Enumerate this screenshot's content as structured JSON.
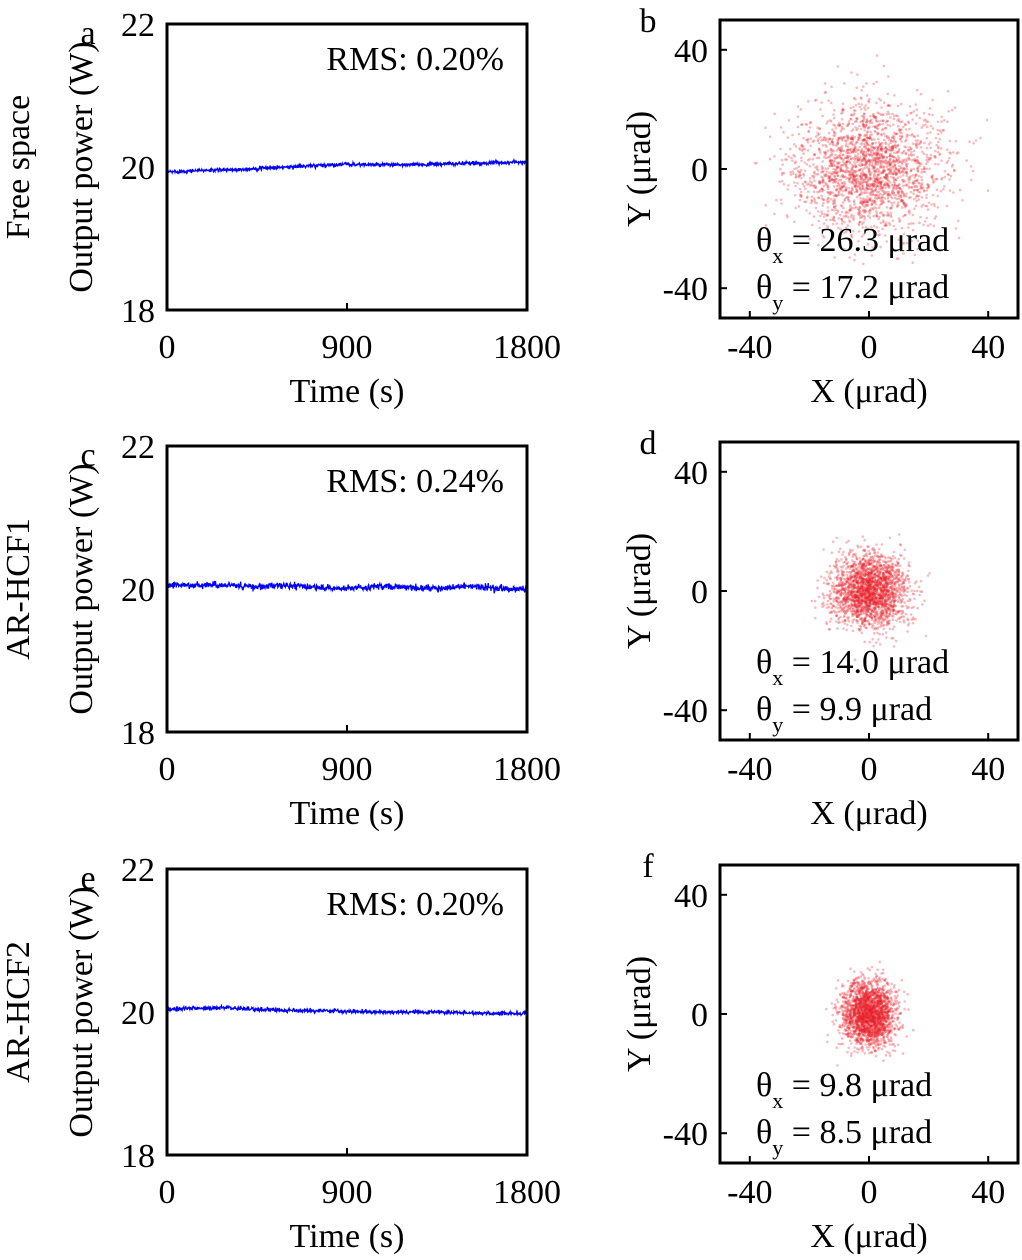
{
  "chart_data": [
    {
      "panel": "a",
      "type": "line",
      "row_label": "Free space",
      "xlabel": "Time (s)",
      "ylabel": "Output power (W)",
      "xlim": [
        0,
        1800
      ],
      "ylim": [
        18,
        22
      ],
      "xticks": [
        "0",
        "900",
        "1800"
      ],
      "yticks": [
        "18",
        "20",
        "22"
      ],
      "annotation": "RMS: 0.20%",
      "color": "#0000ff",
      "series": [
        {
          "x": [
            0,
            150,
            300,
            450,
            600,
            750,
            900,
            1050,
            1200,
            1350,
            1500,
            1650,
            1800
          ],
          "y": [
            19.93,
            19.95,
            19.96,
            19.98,
            20.0,
            20.02,
            20.04,
            20.03,
            20.03,
            20.04,
            20.05,
            20.06,
            20.07
          ]
        }
      ]
    },
    {
      "panel": "b",
      "type": "scatter",
      "xlabel": "X (μrad)",
      "ylabel": "Y (μrad)",
      "xlim": [
        -50,
        50
      ],
      "ylim": [
        -50,
        50
      ],
      "xticks": [
        "-40",
        "0",
        "40"
      ],
      "yticks": [
        "-40",
        "0",
        "40"
      ],
      "color": "#e8202a",
      "theta_x": "= 26.3 μrad",
      "theta_y": "= 17.2 μrad",
      "spread": [
        26.3,
        17.2
      ]
    },
    {
      "panel": "c",
      "type": "line",
      "row_label": "AR-HCF1",
      "xlabel": "Time (s)",
      "ylabel": "Output power (W)",
      "xlim": [
        0,
        1800
      ],
      "ylim": [
        18,
        22
      ],
      "xticks": [
        "0",
        "900",
        "1800"
      ],
      "yticks": [
        "18",
        "20",
        "22"
      ],
      "annotation": "RMS: 0.24%",
      "color": "#0000ff",
      "series": [
        {
          "x": [
            0,
            150,
            300,
            450,
            600,
            750,
            900,
            1050,
            1200,
            1350,
            1500,
            1650,
            1800
          ],
          "y": [
            20.06,
            20.05,
            20.06,
            20.03,
            20.05,
            20.02,
            20.01,
            20.04,
            20.02,
            20.0,
            20.04,
            20.01,
            20.0
          ]
        }
      ]
    },
    {
      "panel": "d",
      "type": "scatter",
      "xlabel": "X (μrad)",
      "ylabel": "Y (μrad)",
      "xlim": [
        -50,
        50
      ],
      "ylim": [
        -50,
        50
      ],
      "xticks": [
        "-40",
        "0",
        "40"
      ],
      "yticks": [
        "-40",
        "0",
        "40"
      ],
      "color": "#e8202a",
      "theta_x": "= 14.0 μrad",
      "theta_y": "= 9.9 μrad",
      "spread": [
        14.0,
        9.9
      ]
    },
    {
      "panel": "e",
      "type": "line",
      "row_label": "AR-HCF2",
      "xlabel": "Time (s)",
      "ylabel": "Output power (W)",
      "xlim": [
        0,
        1800
      ],
      "ylim": [
        18,
        22
      ],
      "xticks": [
        "0",
        "900",
        "1800"
      ],
      "yticks": [
        "18",
        "20",
        "22"
      ],
      "annotation": "RMS: 0.20%",
      "color": "#0000ff",
      "series": [
        {
          "x": [
            0,
            150,
            300,
            450,
            600,
            750,
            900,
            1050,
            1200,
            1350,
            1500,
            1650,
            1800
          ],
          "y": [
            20.04,
            20.05,
            20.06,
            20.04,
            20.02,
            20.02,
            20.01,
            20.0,
            20.0,
            20.0,
            19.99,
            19.98,
            19.98
          ]
        }
      ]
    },
    {
      "panel": "f",
      "type": "scatter",
      "xlabel": "X (μrad)",
      "ylabel": "Y (μrad)",
      "xlim": [
        -50,
        50
      ],
      "ylim": [
        -50,
        50
      ],
      "xticks": [
        "-40",
        "0",
        "40"
      ],
      "yticks": [
        "-40",
        "0",
        "40"
      ],
      "color": "#e8202a",
      "theta_x": "= 9.8 μrad",
      "theta_y": "= 8.5 μrad",
      "spread": [
        9.8,
        8.5
      ]
    }
  ],
  "theta_symbol": "θ"
}
